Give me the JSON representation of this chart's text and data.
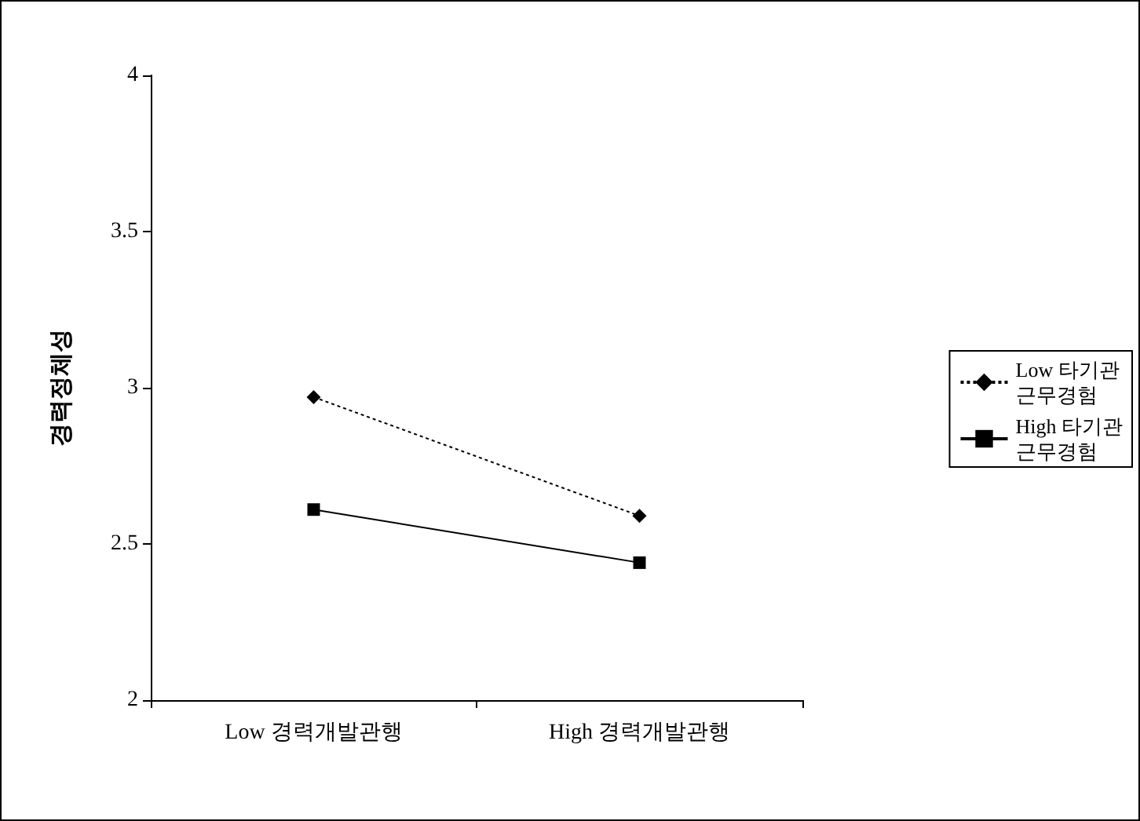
{
  "chart_data": {
    "type": "line",
    "ylabel": "경력정체성",
    "categories": [
      "Low 경력개발관행",
      "High 경력개발관행"
    ],
    "series": [
      {
        "name": "Low 타기관 근무경험",
        "color": "#000000",
        "values": [
          2.97,
          2.59
        ],
        "marker": "diamond",
        "line_style": "dotted"
      },
      {
        "name": "High 타기관 근무경험",
        "color": "#000000",
        "values": [
          2.61,
          2.44
        ],
        "marker": "square",
        "line_style": "solid"
      }
    ],
    "ylim": [
      2,
      4
    ],
    "yticks": [
      2,
      2.5,
      3,
      3.5,
      4
    ],
    "grid": false,
    "legend": "right"
  }
}
